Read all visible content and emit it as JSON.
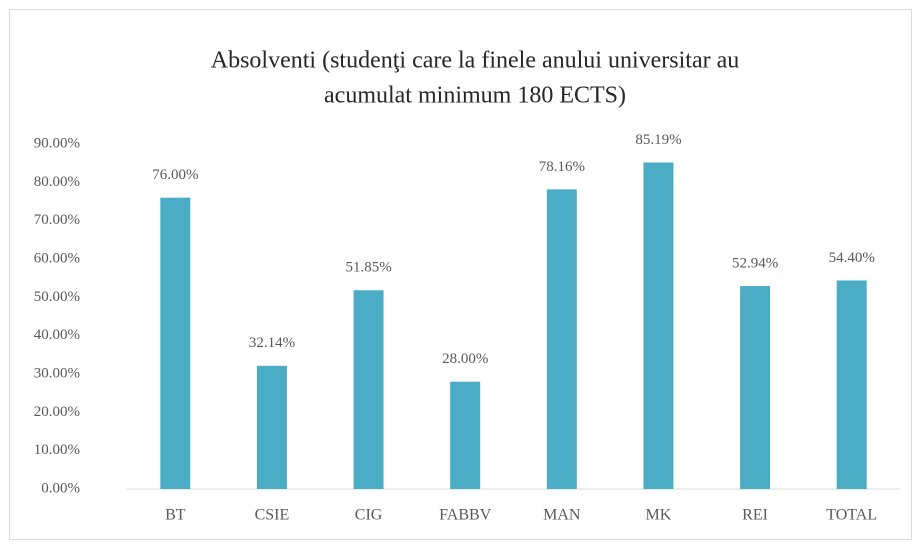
{
  "chart_data": {
    "type": "bar",
    "title": [
      "Absolventi (studenţi care la finele anului universitar au",
      "acumulat minimum 180 ECTS)"
    ],
    "categories": [
      "BT",
      "CSIE",
      "CIG",
      "FABBV",
      "MAN",
      "MK",
      "REI",
      "TOTAL"
    ],
    "values": [
      76.0,
      32.14,
      51.85,
      28.0,
      78.16,
      85.19,
      52.94,
      54.4
    ],
    "value_labels": [
      "76.00%",
      "32.14%",
      "51.85%",
      "28.00%",
      "78.16%",
      "85.19%",
      "52.94%",
      "54.40%"
    ],
    "color": "#4bacc6",
    "ylim": [
      0,
      90
    ],
    "yticks": [
      {
        "value": 0,
        "label": "0.00%"
      },
      {
        "value": 10,
        "label": "10.00%"
      },
      {
        "value": 20,
        "label": "20.00%"
      },
      {
        "value": 30,
        "label": "30.00%"
      },
      {
        "value": 40,
        "label": "40.00%"
      },
      {
        "value": 50,
        "label": "50.00%"
      },
      {
        "value": 60,
        "label": "60.00%"
      },
      {
        "value": 70,
        "label": "70.00%"
      },
      {
        "value": 80,
        "label": "80.00%"
      },
      {
        "value": 90,
        "label": "90.00%"
      }
    ],
    "grid": false
  }
}
